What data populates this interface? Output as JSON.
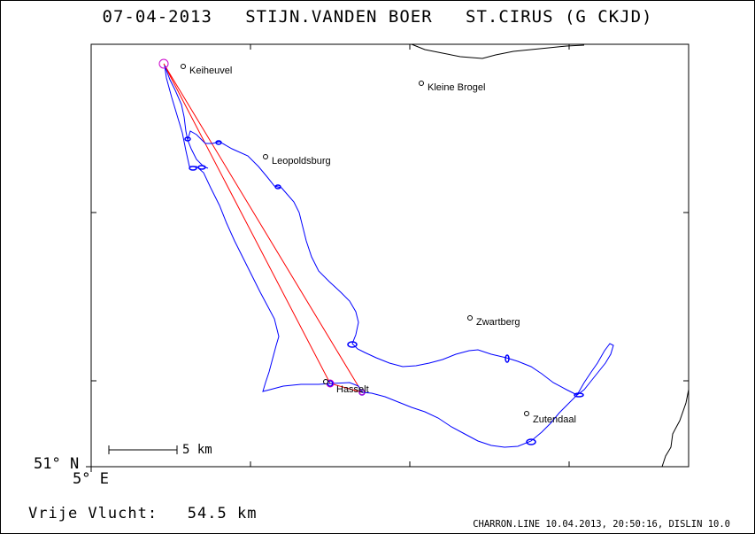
{
  "header": {
    "date": "07-04-2013",
    "pilot": "STIJN.VANDEN BOER",
    "glider": "ST.CIRUS (G CKJD)"
  },
  "axes": {
    "lat_label": "51° N",
    "lon_label": "5° E"
  },
  "scale": {
    "label": "5 km"
  },
  "places": [
    {
      "name": "Keiheuvel"
    },
    {
      "name": "Kleine Brogel"
    },
    {
      "name": "Leopoldsburg"
    },
    {
      "name": "Zwartberg"
    },
    {
      "name": "Hasselt"
    },
    {
      "name": "Zutendaal"
    }
  ],
  "summary": {
    "label": "Vrije Vlucht:",
    "distance": "54.5 km"
  },
  "credit": "CHARRON.LINE 10.04.2013, 20:50:16, DISLIN 10.0",
  "colors": {
    "track": "#0000ff",
    "task": "#ff0000",
    "turnpoint": "#cc00cc",
    "frame": "#000000"
  }
}
